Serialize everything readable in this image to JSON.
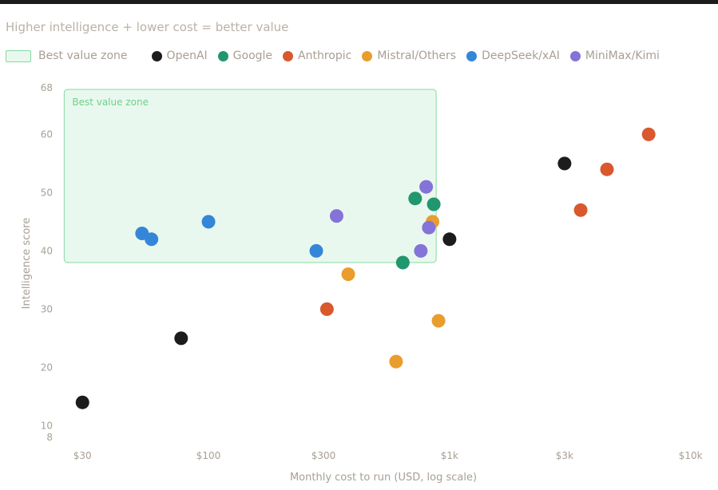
{
  "chart_data": {
    "type": "scatter",
    "title": "Higher intelligence + lower cost = better value",
    "xlabel": "Monthly cost to run (USD, log scale)",
    "ylabel": "Intelligence score",
    "x_scale": "log",
    "xlim": [
      24,
      11500
    ],
    "ylim": [
      8,
      68
    ],
    "x_ticks": [
      {
        "value": 30,
        "label": "$30"
      },
      {
        "value": 100,
        "label": "$100"
      },
      {
        "value": 300,
        "label": "$300"
      },
      {
        "value": 1000,
        "label": "$1k"
      },
      {
        "value": 3000,
        "label": "$3k"
      },
      {
        "value": 10000,
        "label": "$10k"
      }
    ],
    "y_ticks": [
      {
        "value": 68,
        "label": "68"
      },
      {
        "value": 60,
        "label": "60"
      },
      {
        "value": 50,
        "label": "50"
      },
      {
        "value": 40,
        "label": "40"
      },
      {
        "value": 30,
        "label": "30"
      },
      {
        "value": 20,
        "label": "20"
      },
      {
        "value": 10,
        "label": "10"
      },
      {
        "value": 8,
        "label": "8"
      }
    ],
    "grid": false,
    "legend_position": "top-left",
    "best_value_zone": {
      "label": "Best value zone",
      "x_range": [
        25,
        880
      ],
      "y_range": [
        38,
        68
      ],
      "fill": "#e9f8ee",
      "stroke": "#86d9a2",
      "text_color": "#6fcf8d"
    },
    "series": [
      {
        "name": "OpenAI",
        "color": "#1c1c1c",
        "points": [
          [
            30,
            14
          ],
          [
            77,
            25
          ],
          [
            3000,
            55
          ],
          [
            1000,
            42
          ]
        ]
      },
      {
        "name": "Google",
        "color": "#21966f",
        "points": [
          [
            720,
            49
          ],
          [
            860,
            48
          ],
          [
            640,
            38
          ]
        ]
      },
      {
        "name": "Anthropic",
        "color": "#d9582e",
        "points": [
          [
            6700,
            60
          ],
          [
            4500,
            54
          ],
          [
            3500,
            47
          ],
          [
            310,
            30
          ]
        ]
      },
      {
        "name": "Mistral/Others",
        "color": "#e89d2d",
        "points": [
          [
            850,
            45
          ],
          [
            380,
            36
          ],
          [
            600,
            21
          ],
          [
            900,
            28
          ]
        ]
      },
      {
        "name": "DeepSeek/xAI",
        "color": "#3486d8",
        "points": [
          [
            53,
            43
          ],
          [
            58,
            42
          ],
          [
            100,
            45
          ],
          [
            280,
            40
          ]
        ]
      },
      {
        "name": "MiniMax/Kimi",
        "color": "#8473d8",
        "points": [
          [
            340,
            46
          ],
          [
            800,
            51
          ],
          [
            820,
            44
          ],
          [
            760,
            40
          ]
        ]
      }
    ]
  }
}
